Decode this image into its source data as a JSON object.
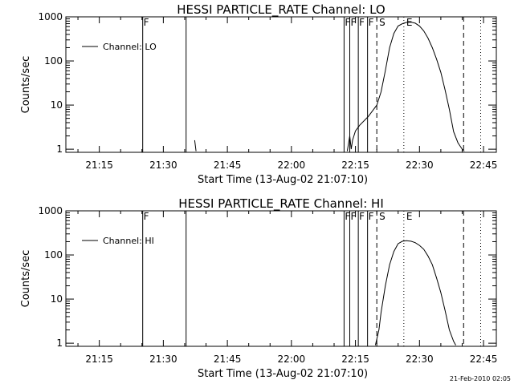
{
  "footer": {
    "timestamp": "21-Feb-2010 02:05"
  },
  "chart_data": [
    {
      "type": "line",
      "title": "HESSI PARTICLE_RATE Channel: LO",
      "xlabel": "Start Time (13-Aug-02 21:07:10)",
      "ylabel": "Counts/sec",
      "xscale": "time-of-day",
      "xlim": [
        "21:07:10",
        "22:48:00"
      ],
      "xticks": [
        "21:15",
        "21:30",
        "21:45",
        "22:00",
        "22:15",
        "22:30",
        "22:45"
      ],
      "yscale": "log",
      "ylim": [
        0.85,
        1000
      ],
      "yticks": [
        "1",
        "10",
        "100",
        "1000"
      ],
      "legend": {
        "position": "top-left",
        "entries": [
          "Channel: LO"
        ]
      },
      "grid": false,
      "series": [
        {
          "name": "Channel: LO",
          "x": [
            "22:13:05",
            "22:13:40",
            "22:14:00",
            "22:14:20",
            "22:15:00",
            "22:16:00",
            "22:18:00",
            "22:20:00",
            "22:21:00",
            "22:22:00",
            "22:23:00",
            "22:24:00",
            "22:25:00",
            "22:26:00",
            "22:27:00",
            "22:28:00",
            "22:29:00",
            "22:30:00",
            "22:31:00",
            "22:32:00",
            "22:33:00",
            "22:34:00",
            "22:35:00",
            "22:36:00",
            "22:37:00",
            "22:38:00",
            "22:39:00",
            "22:40:00",
            "22:40:30"
          ],
          "y": [
            0.9,
            2.0,
            1.0,
            1.6,
            2.6,
            3.5,
            5.5,
            10,
            20,
            60,
            200,
            420,
            620,
            700,
            750,
            760,
            720,
            620,
            480,
            330,
            200,
            110,
            55,
            22,
            8,
            2.5,
            1.4,
            1.0,
            0.9
          ]
        },
        {
          "name": "",
          "x": [
            "21:37:20",
            "21:37:40"
          ],
          "y": [
            1.6,
            0.9
          ]
        }
      ],
      "annotations": [
        {
          "label": "F",
          "time": "21:25:10",
          "style": "solid"
        },
        {
          "label": "",
          "time": "21:35:20",
          "style": "solid"
        },
        {
          "label": "F",
          "time": "22:12:20",
          "style": "solid"
        },
        {
          "label": "F",
          "time": "22:13:40",
          "style": "solid"
        },
        {
          "label": "F",
          "time": "22:15:40",
          "style": "solid"
        },
        {
          "label": "F",
          "time": "22:17:50",
          "style": "solid"
        },
        {
          "label": "S",
          "time": "22:20:00",
          "style": "dashed"
        },
        {
          "label": "E",
          "time": "22:26:20",
          "style": "dotted"
        },
        {
          "label": "",
          "time": "22:40:20",
          "style": "dashed"
        },
        {
          "label": "",
          "time": "22:44:20",
          "style": "dotted"
        }
      ]
    },
    {
      "type": "line",
      "title": "HESSI PARTICLE_RATE Channel: HI",
      "xlabel": "Start Time (13-Aug-02 21:07:10)",
      "ylabel": "Counts/sec",
      "xscale": "time-of-day",
      "xlim": [
        "21:07:10",
        "22:48:00"
      ],
      "xticks": [
        "21:15",
        "21:30",
        "21:45",
        "22:00",
        "22:15",
        "22:30",
        "22:45"
      ],
      "yscale": "log",
      "ylim": [
        0.85,
        1000
      ],
      "yticks": [
        "1",
        "10",
        "100",
        "1000"
      ],
      "legend": {
        "position": "top-left",
        "entries": [
          "Channel: HI"
        ]
      },
      "grid": false,
      "series": [
        {
          "name": "Channel: HI",
          "x": [
            "22:19:40",
            "22:20:30",
            "22:21:00",
            "22:22:00",
            "22:23:00",
            "22:24:00",
            "22:25:00",
            "22:26:00",
            "22:27:00",
            "22:28:00",
            "22:29:00",
            "22:30:00",
            "22:31:00",
            "22:32:00",
            "22:33:00",
            "22:34:00",
            "22:35:00",
            "22:36:00",
            "22:37:00",
            "22:38:00",
            "22:38:30"
          ],
          "y": [
            0.9,
            2.0,
            5,
            20,
            60,
            120,
            180,
            205,
            210,
            205,
            190,
            165,
            135,
            95,
            60,
            30,
            14,
            5.5,
            2.0,
            1.1,
            0.9
          ]
        }
      ],
      "annotations": [
        {
          "label": "F",
          "time": "21:25:10",
          "style": "solid"
        },
        {
          "label": "",
          "time": "21:35:20",
          "style": "solid"
        },
        {
          "label": "F",
          "time": "22:12:20",
          "style": "solid"
        },
        {
          "label": "F",
          "time": "22:13:40",
          "style": "solid"
        },
        {
          "label": "F",
          "time": "22:15:40",
          "style": "solid"
        },
        {
          "label": "F",
          "time": "22:17:50",
          "style": "solid"
        },
        {
          "label": "S",
          "time": "22:20:00",
          "style": "dashed"
        },
        {
          "label": "E",
          "time": "22:26:20",
          "style": "dotted"
        },
        {
          "label": "",
          "time": "22:40:20",
          "style": "dashed"
        },
        {
          "label": "",
          "time": "22:44:20",
          "style": "dotted"
        }
      ]
    }
  ]
}
